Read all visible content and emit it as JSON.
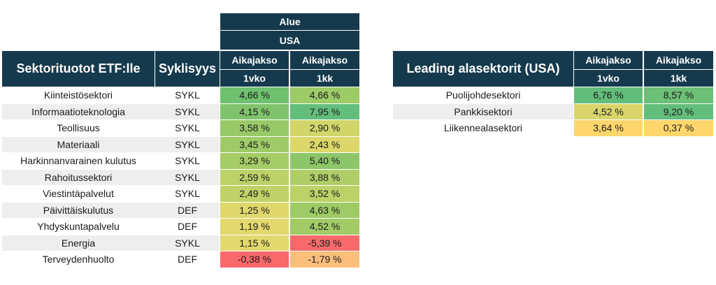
{
  "left_table": {
    "region_label": "Alue",
    "region_value": "USA",
    "title": "Sektorituotot ETF:lle",
    "cyclicality_header": "Syklisyys",
    "period_header_1": "Aikajakso",
    "period_sub_1": "1vko",
    "period_header_2": "Aikajakso",
    "period_sub_2": "1kk",
    "rows": [
      {
        "sector": "Kiinteistösektori",
        "cycle": "SYKL",
        "w1": "4,66 %",
        "m1": "4,66 %",
        "w1_color": "#6fc06f",
        "m1_color": "#9ccb67"
      },
      {
        "sector": "Informaatioteknologia",
        "cycle": "SYKL",
        "w1": "4,15 %",
        "m1": "7,95 %",
        "w1_color": "#7fc46c",
        "m1_color": "#63be7b"
      },
      {
        "sector": "Teollisuus",
        "cycle": "SYKL",
        "w1": "3,58 %",
        "m1": "2,90 %",
        "w1_color": "#98c968",
        "m1_color": "#d2d66a"
      },
      {
        "sector": "Materiaali",
        "cycle": "SYKL",
        "w1": "3,45 %",
        "m1": "2,43 %",
        "w1_color": "#9ecb67",
        "m1_color": "#dcd76a"
      },
      {
        "sector": "Harkinnanvarainen kulutus",
        "cycle": "SYKL",
        "w1": "3,29 %",
        "m1": "5,40 %",
        "w1_color": "#a5cc66",
        "m1_color": "#8dc66a"
      },
      {
        "sector": "Rahoitussektori",
        "cycle": "SYKL",
        "w1": "2,59 %",
        "m1": "3,88 %",
        "w1_color": "#bcd167",
        "m1_color": "#b0ce68"
      },
      {
        "sector": "Viestintäpalvelut",
        "cycle": "SYKL",
        "w1": "2,49 %",
        "m1": "3,52 %",
        "w1_color": "#c0d267",
        "m1_color": "#bcd167"
      },
      {
        "sector": "Päivittäiskulutus",
        "cycle": "DEF",
        "w1": "1,25 %",
        "m1": "4,63 %",
        "w1_color": "#dfd76c",
        "m1_color": "#9ecb67"
      },
      {
        "sector": "Yhdyskuntapalvelu",
        "cycle": "DEF",
        "w1": "1,19 %",
        "m1": "4,52 %",
        "w1_color": "#e2d86d",
        "m1_color": "#a2cb67"
      },
      {
        "sector": "Energia",
        "cycle": "SYKL",
        "w1": "1,15 %",
        "m1": "-5,39 %",
        "w1_color": "#e3d86e",
        "m1_color": "#f7696b"
      },
      {
        "sector": "Terveydenhuolto",
        "cycle": "DEF",
        "w1": "-0,38 %",
        "m1": "-1,79 %",
        "w1_color": "#f8696b",
        "m1_color": "#fcbf7b"
      }
    ]
  },
  "right_table": {
    "title": "Leading alasektorit (USA)",
    "period_header_1": "Aikajakso",
    "period_sub_1": "1vko",
    "period_header_2": "Aikajakso",
    "period_sub_2": "1kk",
    "rows": [
      {
        "sector": "Puolijohdesektori",
        "w1": "6,76 %",
        "m1": "8,57 %",
        "w1_color": "#63be7b",
        "m1_color": "#6cc077"
      },
      {
        "sector": "Pankkisektori",
        "w1": "4,52 %",
        "m1": "9,20 %",
        "w1_color": "#d9d56b",
        "m1_color": "#63be7b"
      },
      {
        "sector": "Liikennealasektori",
        "w1": "3,64 %",
        "m1": "0,37 %",
        "w1_color": "#ffd66b",
        "m1_color": "#ffd66b"
      }
    ]
  }
}
